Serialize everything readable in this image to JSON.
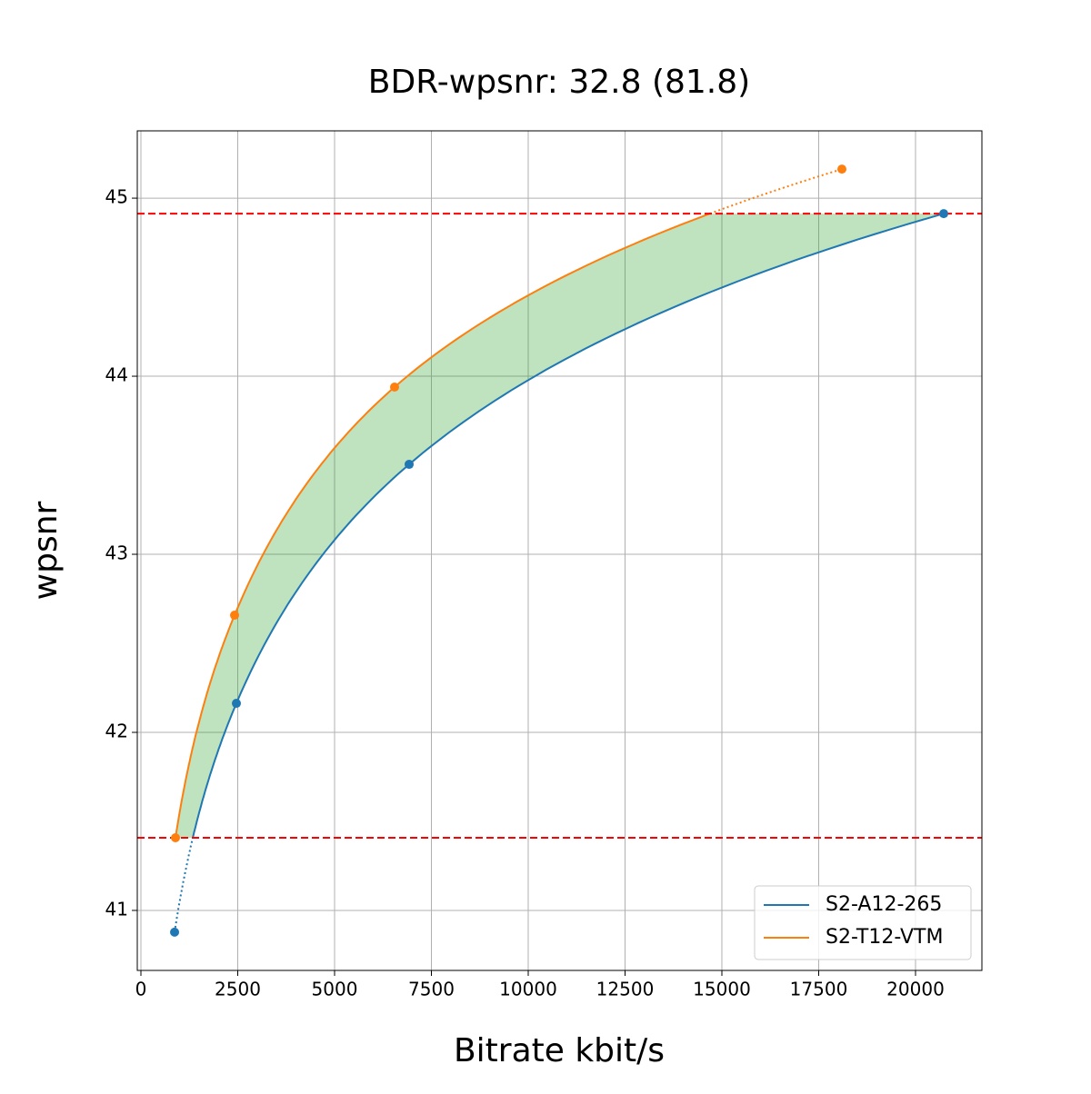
{
  "chart_data": {
    "type": "line",
    "title": "BDR-wpsnr: 32.8 (81.8)",
    "x_label": "Bitrate kbit/s",
    "y_label": "wpsnr",
    "series": [
      {
        "name": "S2-A12-265",
        "color": "#1f77b4",
        "x": [
          869,
          2465,
          6925,
          20728
        ],
        "values": [
          40.878,
          42.163,
          43.505,
          44.913
        ]
      },
      {
        "name": "S2-T12-VTM",
        "color": "#ff7f0e",
        "x": [
          892,
          2418,
          6549,
          18099
        ],
        "values": [
          41.408,
          42.658,
          43.939,
          45.163
        ]
      }
    ],
    "hlines": [
      44.913,
      41.408
    ],
    "hline_color": "#ff0000",
    "fill_color": "#2ca02c",
    "xlim": [
      -94,
      21714
    ],
    "ylim": [
      40.663,
      45.378
    ],
    "xticks": [
      0,
      2500,
      5000,
      7500,
      10000,
      12500,
      15000,
      17500,
      20000
    ],
    "yticks": [
      41,
      42,
      43,
      44,
      45
    ],
    "grid": true,
    "legend": "lower right"
  }
}
